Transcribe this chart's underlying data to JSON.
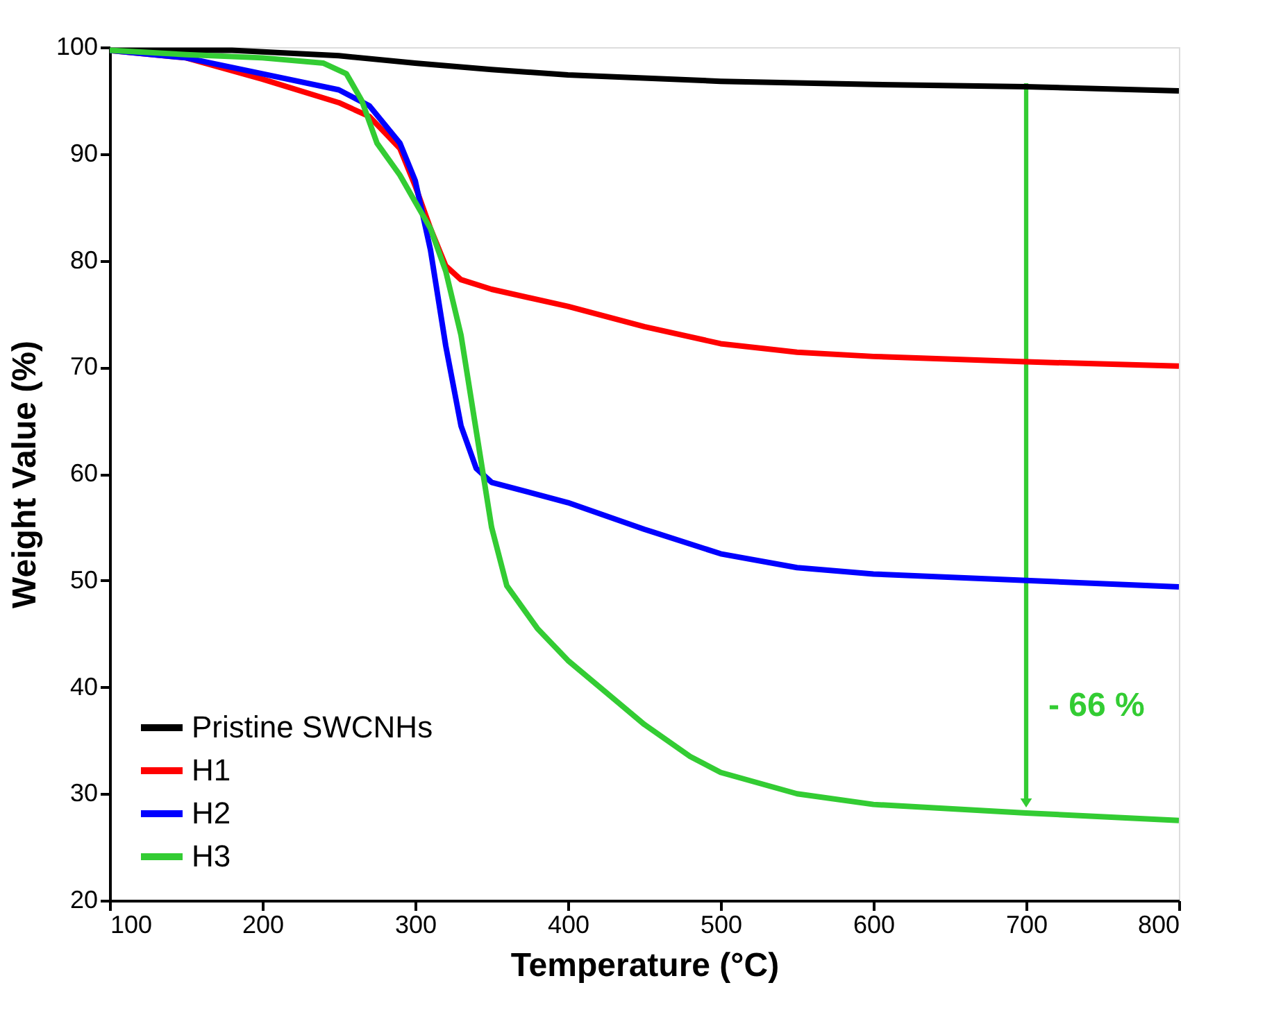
{
  "chart_data": {
    "type": "line",
    "xlabel": "Temperature (°C)",
    "ylabel": "Weight Value (%)",
    "xlim": [
      100,
      800
    ],
    "xticks": [
      100,
      200,
      300,
      400,
      500,
      600,
      700,
      800
    ],
    "ylim": [
      20,
      100
    ],
    "yticks": [
      20,
      30,
      40,
      50,
      60,
      70,
      80,
      90,
      100
    ],
    "grid": false,
    "legend": "bottom left",
    "marker": "none",
    "line_style": "solid",
    "annotations": [
      "- 66 %"
    ],
    "series": [
      {
        "name": "Pristine SWCNHs",
        "color": "#000000",
        "x": [
          100,
          180,
          250,
          300,
          350,
          400,
          500,
          600,
          700,
          800
        ],
        "values": [
          99.7,
          99.7,
          99.2,
          98.5,
          97.9,
          97.4,
          96.8,
          96.5,
          96.3,
          95.9
        ]
      },
      {
        "name": "H1",
        "color": "#ff0000",
        "x": [
          100,
          150,
          200,
          250,
          270,
          290,
          300,
          310,
          320,
          330,
          350,
          400,
          450,
          500,
          550,
          600,
          700,
          800
        ],
        "values": [
          99.7,
          99,
          97,
          94.8,
          93.5,
          90.5,
          87,
          83,
          79.5,
          78.2,
          77.3,
          75.7,
          73.8,
          72.2,
          71.4,
          71,
          70.5,
          70.1
        ]
      },
      {
        "name": "H2",
        "color": "#0000ff",
        "x": [
          100,
          150,
          200,
          250,
          270,
          290,
          300,
          310,
          320,
          330,
          340,
          350,
          400,
          450,
          500,
          550,
          600,
          700,
          800
        ],
        "values": [
          99.7,
          99,
          97.5,
          96,
          94.5,
          91,
          87.5,
          81,
          72,
          64.5,
          60.5,
          59.2,
          57.3,
          54.8,
          52.5,
          51.2,
          50.6,
          50,
          49.4
        ]
      },
      {
        "name": "H3",
        "color": "#33cc33",
        "x": [
          100,
          150,
          200,
          240,
          255,
          265,
          275,
          290,
          300,
          310,
          320,
          330,
          340,
          350,
          360,
          380,
          400,
          450,
          480,
          500,
          550,
          600,
          700,
          800
        ],
        "values": [
          99.7,
          99.3,
          99,
          98.5,
          97.5,
          95,
          91,
          88,
          85.5,
          83,
          79,
          73,
          64,
          55,
          49.5,
          45.5,
          42.5,
          36.5,
          33.5,
          32,
          30,
          29,
          28.2,
          27.5
        ]
      }
    ]
  }
}
